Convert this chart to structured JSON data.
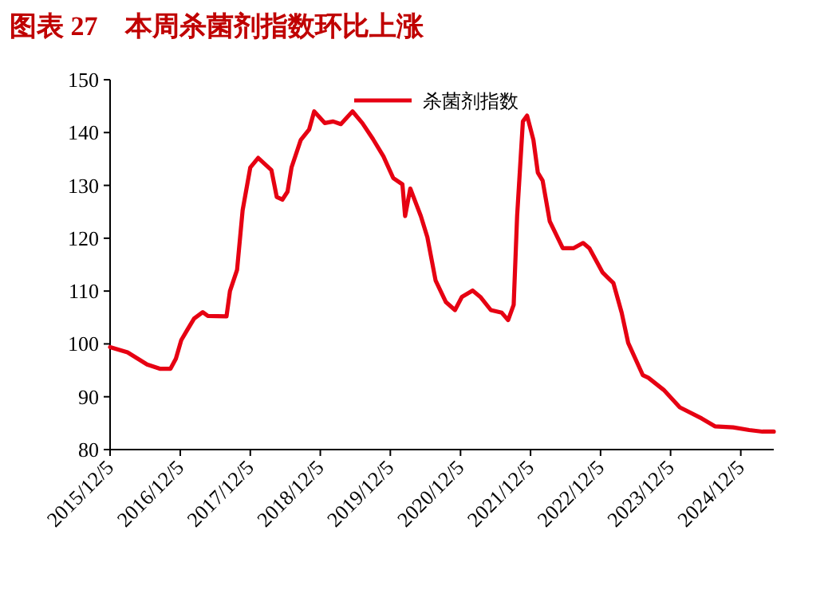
{
  "chart_data": {
    "type": "line",
    "title": "图表 27　本周杀菌剂指数环比上涨",
    "x": [
      "2015-12-05",
      "2016-03-05",
      "2016-06-15",
      "2016-08-20",
      "2016-10-15",
      "2016-11-12",
      "2016-12-10",
      "2017-01-08",
      "2017-02-15",
      "2017-04-01",
      "2017-04-28",
      "2017-08-03",
      "2017-08-21",
      "2017-09-27",
      "2017-10-26",
      "2017-12-05",
      "2018-01-15",
      "2018-03-25",
      "2018-04-22",
      "2018-05-21",
      "2018-06-17",
      "2018-07-08",
      "2018-08-25",
      "2018-10-08",
      "2018-11-03",
      "2018-12-28",
      "2019-02-10",
      "2019-03-22",
      "2019-05-22",
      "2019-07-12",
      "2019-09-05",
      "2019-10-30",
      "2019-12-20",
      "2020-02-06",
      "2020-02-20",
      "2020-03-18",
      "2020-05-12",
      "2020-06-15",
      "2020-07-28",
      "2020-09-20",
      "2020-11-06",
      "2020-12-12",
      "2021-02-06",
      "2021-03-18",
      "2021-05-12",
      "2021-07-08",
      "2021-08-10",
      "2021-09-08",
      "2021-09-26",
      "2021-10-26",
      "2021-11-17",
      "2021-12-20",
      "2022-01-12",
      "2022-02-06",
      "2022-03-15",
      "2022-05-22",
      "2022-07-16",
      "2022-09-05",
      "2022-10-08",
      "2022-12-16",
      "2023-02-10",
      "2023-03-25",
      "2023-04-28",
      "2023-07-13",
      "2023-08-11",
      "2023-10-30",
      "2024-01-22",
      "2024-05-15",
      "2024-07-23",
      "2024-10-26",
      "2025-01-18",
      "2025-03-28",
      "2025-05-26"
    ],
    "series": [
      {
        "name": "杀菌剂指数",
        "color": "#e60012",
        "values": [
          99.4,
          98.4,
          96.1,
          95.3,
          95.3,
          97.2,
          100.7,
          102.5,
          104.8,
          106,
          105.3,
          105.2,
          110,
          114,
          125.3,
          133.4,
          135.2,
          132.9,
          127.8,
          127.3,
          128.8,
          133.4,
          138.6,
          140.6,
          144,
          141.8,
          142.1,
          141.6,
          144,
          141.8,
          138.8,
          135.5,
          131.4,
          130.2,
          124.2,
          129.4,
          124.2,
          120.2,
          112,
          107.9,
          106.4,
          108.9,
          110.1,
          108.9,
          106.4,
          105.9,
          104.5,
          107.4,
          124.2,
          142.1,
          143.2,
          138.6,
          132.4,
          130.9,
          123.2,
          118.1,
          118.1,
          119.1,
          118.1,
          113.5,
          111.5,
          105.9,
          100.2,
          94.1,
          93.6,
          91.3,
          88,
          85.9,
          84.4,
          84.2,
          83.7,
          83.4,
          83.4
        ]
      }
    ],
    "xlim": [
      "2015-12-05",
      "2025-05-26"
    ],
    "xticks": [
      {
        "value": "2015-12-05",
        "label": "2015/12/5"
      },
      {
        "value": "2016-12-05",
        "label": "2016/12/5"
      },
      {
        "value": "2017-12-05",
        "label": "2017/12/5"
      },
      {
        "value": "2018-12-05",
        "label": "2018/12/5"
      },
      {
        "value": "2019-12-05",
        "label": "2019/12/5"
      },
      {
        "value": "2020-12-05",
        "label": "2020/12/5"
      },
      {
        "value": "2021-12-05",
        "label": "2021/12/5"
      },
      {
        "value": "2022-12-05",
        "label": "2022/12/5"
      },
      {
        "value": "2023-12-05",
        "label": "2023/12/5"
      },
      {
        "value": "2024-12-05",
        "label": "2024/12/5"
      }
    ],
    "ylim": [
      80,
      150
    ],
    "yticks": [
      80,
      90,
      100,
      110,
      120,
      130,
      140,
      150
    ],
    "legend": "top right"
  }
}
